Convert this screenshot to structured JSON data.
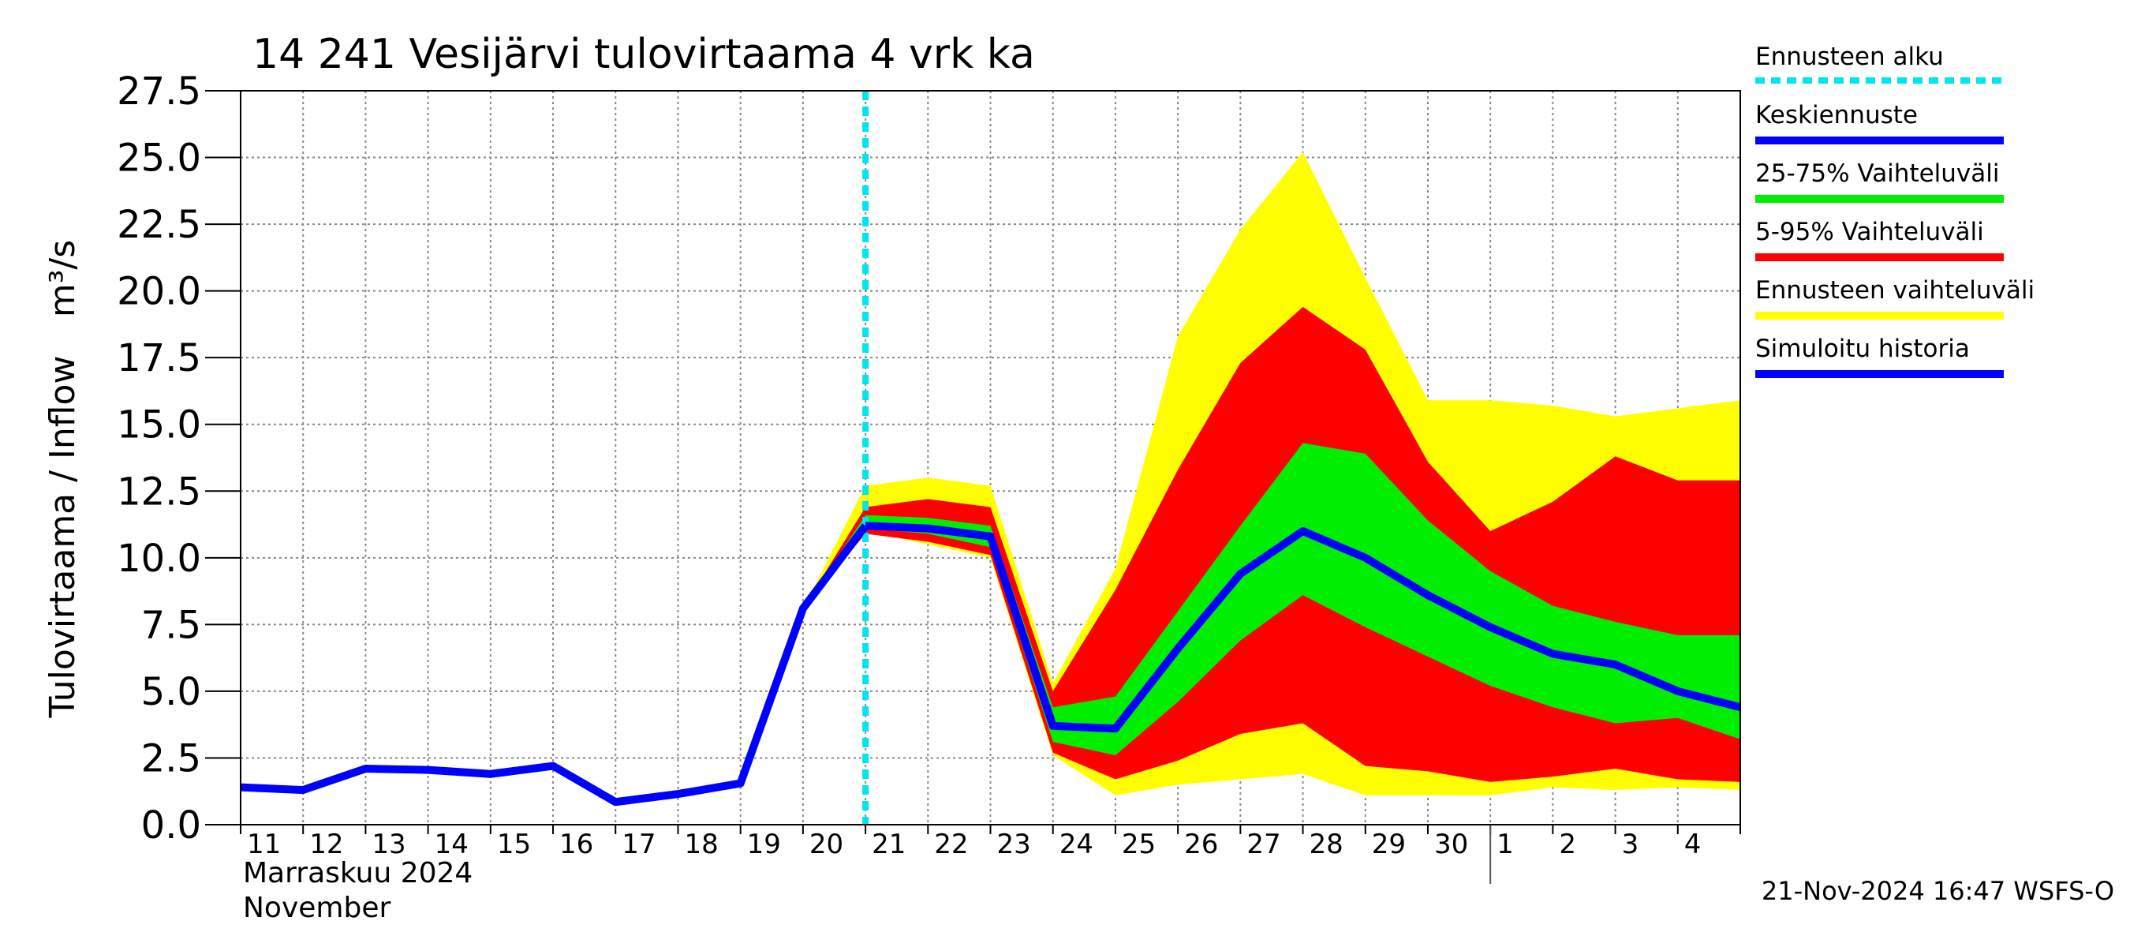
{
  "chart_data": {
    "type": "line",
    "title": "14 241 Vesijärvi tulovirtaama 4 vrk ka",
    "y_label": "Tulovirtaama / Inflow",
    "y_unit": "m³/s",
    "x_label_fi": "Marraskuu 2024",
    "x_label_en": "November",
    "timestamp": "21-Nov-2024 16:47 WSFS-O",
    "grid": true,
    "categories": [
      "11",
      "12",
      "13",
      "14",
      "15",
      "16",
      "17",
      "18",
      "19",
      "20",
      "21",
      "22",
      "23",
      "24",
      "25",
      "26",
      "27",
      "28",
      "29",
      "30",
      "1",
      "2",
      "3",
      "4",
      null
    ],
    "ylim": [
      0,
      27.5
    ],
    "yticks": [
      {
        "value": 0,
        "label": "0.0"
      },
      2.5,
      {
        "value": 5,
        "label": "5.0"
      },
      7.5,
      {
        "value": 10,
        "label": "10.0"
      },
      12.5,
      {
        "value": 15,
        "label": "15.0"
      },
      17.5,
      {
        "value": 20,
        "label": "20.0"
      },
      22.5,
      {
        "value": 25,
        "label": "25.0"
      },
      27.5
    ],
    "forecast_start": {
      "name": "Ennusteen alku",
      "color": "#00e5ee",
      "category": "21"
    },
    "series": [
      {
        "name": "Keskiennuste",
        "color": "#0000ff",
        "values": [
          null,
          null,
          null,
          null,
          null,
          null,
          null,
          null,
          null,
          null,
          11.2,
          11.1,
          10.8,
          3.7,
          3.6,
          6.6,
          9.4,
          11.0,
          10.0,
          8.6,
          7.4,
          6.4,
          6.0,
          5.0,
          4.4
        ]
      },
      {
        "name": "25-75% Vaihteluväli",
        "color": "#00ee00",
        "high": [
          null,
          null,
          null,
          null,
          null,
          null,
          null,
          null,
          null,
          8.1,
          11.6,
          11.5,
          11.2,
          4.4,
          4.8,
          8.0,
          11.2,
          14.3,
          13.9,
          11.4,
          9.5,
          8.2,
          7.6,
          7.1,
          7.1
        ],
        "low": [
          null,
          null,
          null,
          null,
          null,
          null,
          null,
          null,
          null,
          8.1,
          11.1,
          10.9,
          10.4,
          3.1,
          2.6,
          4.6,
          6.9,
          8.6,
          7.4,
          6.3,
          5.2,
          4.4,
          3.8,
          4.0,
          3.2
        ]
      },
      {
        "name": "5-95% Vaihteluväli",
        "color": "#ff0000",
        "high": [
          null,
          null,
          null,
          null,
          null,
          null,
          null,
          null,
          null,
          8.1,
          11.9,
          12.2,
          11.9,
          5.0,
          8.8,
          13.3,
          17.3,
          19.4,
          17.8,
          13.6,
          11.0,
          12.1,
          13.8,
          12.9,
          12.9
        ],
        "low": [
          null,
          null,
          null,
          null,
          null,
          null,
          null,
          null,
          null,
          8.1,
          10.9,
          10.6,
          10.1,
          2.7,
          1.7,
          2.4,
          3.4,
          3.8,
          2.2,
          2.0,
          1.6,
          1.8,
          2.1,
          1.7,
          1.6
        ]
      },
      {
        "name": "Ennusteen vaihteluväli",
        "color": "#ffff00",
        "high": [
          null,
          null,
          null,
          null,
          null,
          null,
          null,
          null,
          null,
          8.1,
          12.7,
          13.0,
          12.7,
          5.3,
          9.6,
          18.3,
          22.3,
          25.2,
          20.5,
          15.9,
          15.9,
          15.7,
          15.3,
          15.6,
          15.9
        ],
        "low": [
          null,
          null,
          null,
          null,
          null,
          null,
          null,
          null,
          null,
          8.1,
          11.0,
          10.5,
          10.0,
          2.6,
          1.1,
          1.5,
          1.7,
          1.9,
          1.1,
          1.1,
          1.1,
          1.4,
          1.3,
          1.4,
          1.3
        ]
      },
      {
        "name": "Simuloitu historia",
        "color": "#0000ff",
        "values": [
          1.4,
          1.3,
          2.1,
          2.05,
          1.9,
          2.2,
          0.85,
          1.15,
          1.55,
          8.1,
          11.2,
          null,
          null,
          null,
          null,
          null,
          null,
          null,
          null,
          null,
          null,
          null,
          null,
          null,
          null
        ]
      }
    ]
  }
}
